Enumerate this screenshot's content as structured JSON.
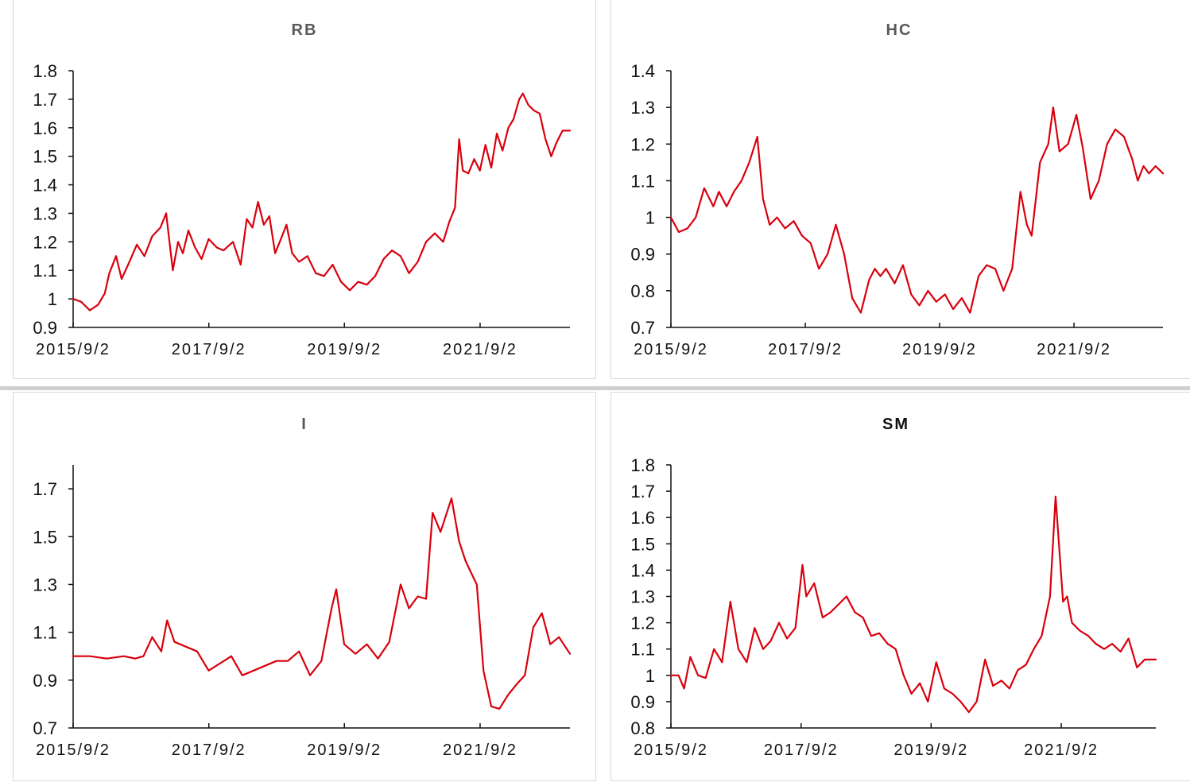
{
  "colors": {
    "line": "#d9000d",
    "axis": "#111111",
    "title": "#595959"
  },
  "chart_data": [
    {
      "id": "rb",
      "type": "line",
      "title": "RB",
      "xlabel": "",
      "ylabel": "",
      "xlim": [
        "2015-09-02",
        "2022-12-30"
      ],
      "ylim": [
        0.9,
        1.8
      ],
      "yticks": [
        0.9,
        1.0,
        1.1,
        1.2,
        1.3,
        1.4,
        1.5,
        1.6,
        1.7,
        1.8
      ],
      "ytick_labels": [
        "0.9",
        "1",
        "1.1",
        "1.2",
        "1.3",
        "1.4",
        "1.5",
        "1.6",
        "1.7",
        "1.8"
      ],
      "xticks": [
        "2015-09-02",
        "2017-09-02",
        "2019-09-02",
        "2021-09-02"
      ],
      "xtick_labels": [
        "2015/9/2",
        "2017/9/2",
        "2019/9/2",
        "2021/9/2"
      ],
      "grid": false,
      "legend": "none",
      "series": [
        {
          "x": [
            "2015-09-02",
            "2015-10-15",
            "2015-12-01",
            "2016-01-15",
            "2016-02-20",
            "2016-03-15",
            "2016-04-20",
            "2016-05-20",
            "2016-07-01",
            "2016-08-10",
            "2016-09-20",
            "2016-11-01",
            "2016-12-15",
            "2017-01-15",
            "2017-02-20",
            "2017-03-20",
            "2017-04-15",
            "2017-05-15",
            "2017-06-20",
            "2017-07-25",
            "2017-09-01",
            "2017-10-15",
            "2017-11-20",
            "2018-01-10",
            "2018-02-20",
            "2018-03-25",
            "2018-04-25",
            "2018-05-25",
            "2018-06-25",
            "2018-07-25",
            "2018-08-25",
            "2018-09-25",
            "2018-10-25",
            "2018-11-25",
            "2019-01-01",
            "2019-02-15",
            "2019-04-01",
            "2019-05-15",
            "2019-07-01",
            "2019-08-15",
            "2019-10-01",
            "2019-11-15",
            "2020-01-01",
            "2020-02-15",
            "2020-04-01",
            "2020-05-15",
            "2020-07-01",
            "2020-08-15",
            "2020-10-01",
            "2020-11-15",
            "2021-01-01",
            "2021-02-15",
            "2021-03-20",
            "2021-04-20",
            "2021-05-12",
            "2021-06-01",
            "2021-07-01",
            "2021-08-01",
            "2021-09-01",
            "2021-10-01",
            "2021-11-01",
            "2021-12-01",
            "2022-01-01",
            "2022-02-01",
            "2022-03-01",
            "2022-04-01",
            "2022-04-20",
            "2022-05-20",
            "2022-06-20",
            "2022-07-20",
            "2022-08-20",
            "2022-09-20",
            "2022-10-20",
            "2022-11-20",
            "2022-12-30"
          ],
          "y": [
            1.0,
            0.99,
            0.96,
            0.98,
            1.02,
            1.09,
            1.15,
            1.07,
            1.13,
            1.19,
            1.15,
            1.22,
            1.25,
            1.3,
            1.1,
            1.2,
            1.16,
            1.24,
            1.18,
            1.14,
            1.21,
            1.18,
            1.17,
            1.2,
            1.12,
            1.28,
            1.25,
            1.34,
            1.26,
            1.29,
            1.16,
            1.21,
            1.26,
            1.16,
            1.13,
            1.15,
            1.09,
            1.08,
            1.12,
            1.06,
            1.03,
            1.06,
            1.05,
            1.08,
            1.14,
            1.17,
            1.15,
            1.09,
            1.13,
            1.2,
            1.23,
            1.2,
            1.27,
            1.32,
            1.56,
            1.45,
            1.44,
            1.49,
            1.45,
            1.54,
            1.46,
            1.58,
            1.52,
            1.6,
            1.63,
            1.7,
            1.72,
            1.68,
            1.66,
            1.65,
            1.56,
            1.5,
            1.55,
            1.59,
            1.59
          ]
        }
      ]
    },
    {
      "id": "hc",
      "type": "line",
      "title": "HC",
      "xlabel": "",
      "ylabel": "",
      "xlim": [
        "2015-09-02",
        "2022-12-30"
      ],
      "ylim": [
        0.7,
        1.4
      ],
      "yticks": [
        0.7,
        0.8,
        0.9,
        1.0,
        1.1,
        1.2,
        1.3,
        1.4
      ],
      "ytick_labels": [
        "0.7",
        "0.8",
        "0.9",
        "1",
        "1.1",
        "1.2",
        "1.3",
        "1.4"
      ],
      "xticks": [
        "2015-09-02",
        "2017-09-02",
        "2019-09-02",
        "2021-09-02"
      ],
      "xtick_labels": [
        "2015/9/2",
        "2017/9/2",
        "2019/9/2",
        "2021/9/2"
      ],
      "grid": false,
      "legend": "none",
      "series": [
        {
          "x": [
            "2015-09-02",
            "2015-10-15",
            "2015-12-01",
            "2016-01-15",
            "2016-03-01",
            "2016-04-20",
            "2016-05-20",
            "2016-07-01",
            "2016-08-10",
            "2016-09-20",
            "2016-11-01",
            "2016-12-15",
            "2017-01-15",
            "2017-02-20",
            "2017-04-01",
            "2017-05-15",
            "2017-07-01",
            "2017-08-15",
            "2017-10-01",
            "2017-11-15",
            "2018-01-01",
            "2018-02-15",
            "2018-04-01",
            "2018-05-15",
            "2018-07-01",
            "2018-08-15",
            "2018-09-15",
            "2018-10-15",
            "2018-11-15",
            "2019-01-01",
            "2019-02-15",
            "2019-04-01",
            "2019-05-15",
            "2019-07-01",
            "2019-08-15",
            "2019-10-01",
            "2019-11-15",
            "2020-01-01",
            "2020-02-15",
            "2020-04-01",
            "2020-05-15",
            "2020-07-01",
            "2020-08-15",
            "2020-10-01",
            "2020-11-15",
            "2020-12-20",
            "2021-01-15",
            "2021-03-01",
            "2021-04-15",
            "2021-05-12",
            "2021-06-15",
            "2021-08-01",
            "2021-09-15",
            "2021-10-20",
            "2021-12-01",
            "2022-01-15",
            "2022-03-01",
            "2022-04-15",
            "2022-06-01",
            "2022-07-15",
            "2022-08-15",
            "2022-09-15",
            "2022-10-15",
            "2022-11-20",
            "2022-12-30"
          ],
          "y": [
            1.0,
            0.96,
            0.97,
            1.0,
            1.08,
            1.03,
            1.07,
            1.03,
            1.07,
            1.1,
            1.15,
            1.22,
            1.05,
            0.98,
            1.0,
            0.97,
            0.99,
            0.95,
            0.93,
            0.86,
            0.9,
            0.98,
            0.9,
            0.78,
            0.74,
            0.83,
            0.86,
            0.84,
            0.86,
            0.82,
            0.87,
            0.79,
            0.76,
            0.8,
            0.77,
            0.79,
            0.75,
            0.78,
            0.74,
            0.84,
            0.87,
            0.86,
            0.8,
            0.86,
            1.07,
            0.98,
            0.95,
            1.15,
            1.2,
            1.3,
            1.18,
            1.2,
            1.28,
            1.19,
            1.05,
            1.1,
            1.2,
            1.24,
            1.22,
            1.16,
            1.1,
            1.14,
            1.12,
            1.14,
            1.12
          ]
        }
      ]
    },
    {
      "id": "i",
      "type": "line",
      "title": "I",
      "xlabel": "",
      "ylabel": "",
      "xlim": [
        "2015-09-02",
        "2022-12-30"
      ],
      "ylim": [
        0.7,
        1.8
      ],
      "yticks": [
        0.7,
        0.9,
        1.1,
        1.3,
        1.5,
        1.7
      ],
      "ytick_labels": [
        "0.7",
        "0.9",
        "1.1",
        "1.3",
        "1.5",
        "1.7"
      ],
      "xticks": [
        "2015-09-02",
        "2017-09-02",
        "2019-09-02",
        "2021-09-02"
      ],
      "xtick_labels": [
        "2015/9/2",
        "2017/9/2",
        "2019/9/2",
        "2021/9/2"
      ],
      "grid": false,
      "legend": "none",
      "series": [
        {
          "x": [
            "2015-09-02",
            "2015-12-01",
            "2016-03-01",
            "2016-06-01",
            "2016-08-01",
            "2016-09-15",
            "2016-11-01",
            "2016-12-20",
            "2017-01-20",
            "2017-03-01",
            "2017-05-01",
            "2017-07-01",
            "2017-09-01",
            "2017-11-01",
            "2018-01-01",
            "2018-03-01",
            "2018-05-01",
            "2018-07-01",
            "2018-09-01",
            "2018-11-01",
            "2019-01-01",
            "2019-03-01",
            "2019-05-01",
            "2019-06-25",
            "2019-07-20",
            "2019-09-01",
            "2019-11-01",
            "2020-01-01",
            "2020-03-01",
            "2020-05-01",
            "2020-07-01",
            "2020-08-15",
            "2020-10-01",
            "2020-11-15",
            "2020-12-20",
            "2021-02-01",
            "2021-04-01",
            "2021-05-12",
            "2021-06-15",
            "2021-07-15",
            "2021-08-15",
            "2021-09-20",
            "2021-11-01",
            "2021-12-15",
            "2022-02-01",
            "2022-03-15",
            "2022-05-01",
            "2022-06-15",
            "2022-08-01",
            "2022-09-15",
            "2022-11-01",
            "2022-12-30"
          ],
          "y": [
            1.0,
            1.0,
            0.99,
            1.0,
            0.99,
            1.0,
            1.08,
            1.02,
            1.15,
            1.06,
            1.04,
            1.02,
            0.94,
            0.97,
            1.0,
            0.92,
            0.94,
            0.96,
            0.98,
            0.98,
            1.02,
            0.92,
            0.98,
            1.2,
            1.28,
            1.05,
            1.01,
            1.05,
            0.99,
            1.06,
            1.3,
            1.2,
            1.25,
            1.24,
            1.6,
            1.52,
            1.66,
            1.48,
            1.4,
            1.35,
            1.3,
            0.94,
            0.79,
            0.78,
            0.84,
            0.88,
            0.92,
            1.12,
            1.18,
            1.05,
            1.08,
            1.01
          ]
        }
      ]
    },
    {
      "id": "sm",
      "type": "line",
      "title": "SM",
      "xlabel": "",
      "ylabel": "",
      "xlim": [
        "2015-09-02",
        "2023-02-15"
      ],
      "ylim": [
        0.8,
        1.8
      ],
      "yticks": [
        0.8,
        0.9,
        1.0,
        1.1,
        1.2,
        1.3,
        1.4,
        1.5,
        1.6,
        1.7,
        1.8
      ],
      "ytick_labels": [
        "0.8",
        "0.9",
        "1",
        "1.1",
        "1.2",
        "1.3",
        "1.4",
        "1.5",
        "1.6",
        "1.7",
        "1.8"
      ],
      "xticks": [
        "2015-09-02",
        "2017-09-02",
        "2019-09-02",
        "2021-09-02"
      ],
      "xtick_labels": [
        "2015/9/2",
        "2017/9/2",
        "2019/9/2",
        "2021/9/2"
      ],
      "grid": false,
      "legend": "none",
      "series": [
        {
          "x": [
            "2015-09-02",
            "2015-10-15",
            "2015-11-15",
            "2015-12-20",
            "2016-02-01",
            "2016-03-15",
            "2016-05-01",
            "2016-06-15",
            "2016-08-01",
            "2016-09-15",
            "2016-11-01",
            "2016-12-15",
            "2017-02-01",
            "2017-03-15",
            "2017-05-01",
            "2017-06-15",
            "2017-08-01",
            "2017-09-10",
            "2017-10-01",
            "2017-11-15",
            "2018-01-01",
            "2018-02-15",
            "2018-04-01",
            "2018-05-15",
            "2018-07-01",
            "2018-08-15",
            "2018-10-01",
            "2018-11-15",
            "2019-01-01",
            "2019-02-15",
            "2019-04-01",
            "2019-05-15",
            "2019-07-01",
            "2019-08-15",
            "2019-10-01",
            "2019-11-15",
            "2020-01-01",
            "2020-02-15",
            "2020-04-01",
            "2020-05-15",
            "2020-07-01",
            "2020-08-15",
            "2020-10-01",
            "2020-11-15",
            "2021-01-01",
            "2021-02-15",
            "2021-04-01",
            "2021-05-15",
            "2021-07-01",
            "2021-08-01",
            "2021-08-25",
            "2021-09-12",
            "2021-10-05",
            "2021-11-01",
            "2021-12-15",
            "2022-02-01",
            "2022-03-15",
            "2022-05-01",
            "2022-06-15",
            "2022-08-01",
            "2022-09-15",
            "2022-11-01",
            "2022-12-15",
            "2023-02-15"
          ],
          "y": [
            1.0,
            1.0,
            0.95,
            1.07,
            1.0,
            0.99,
            1.1,
            1.05,
            1.28,
            1.1,
            1.05,
            1.18,
            1.1,
            1.13,
            1.2,
            1.14,
            1.18,
            1.42,
            1.3,
            1.35,
            1.22,
            1.24,
            1.27,
            1.3,
            1.24,
            1.22,
            1.15,
            1.16,
            1.12,
            1.1,
            1.0,
            0.93,
            0.97,
            0.9,
            1.05,
            0.95,
            0.93,
            0.9,
            0.86,
            0.9,
            1.06,
            0.96,
            0.98,
            0.95,
            1.02,
            1.04,
            1.1,
            1.15,
            1.3,
            1.68,
            1.45,
            1.28,
            1.3,
            1.2,
            1.17,
            1.15,
            1.12,
            1.1,
            1.12,
            1.09,
            1.14,
            1.03,
            1.06,
            1.06
          ]
        }
      ]
    }
  ]
}
